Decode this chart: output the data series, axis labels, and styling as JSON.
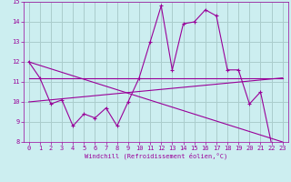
{
  "xlabel": "Windchill (Refroidissement éolien,°C)",
  "bg_color": "#cceef0",
  "grid_color": "#aacccc",
  "line_color": "#990099",
  "xlim": [
    -0.5,
    23.5
  ],
  "ylim": [
    8,
    15
  ],
  "xticks": [
    0,
    1,
    2,
    3,
    4,
    5,
    6,
    7,
    8,
    9,
    10,
    11,
    12,
    13,
    14,
    15,
    16,
    17,
    18,
    19,
    20,
    21,
    22,
    23
  ],
  "yticks": [
    8,
    9,
    10,
    11,
    12,
    13,
    14,
    15
  ],
  "series1_x": [
    0,
    1,
    2,
    3,
    4,
    5,
    6,
    7,
    8,
    9,
    10,
    11,
    12,
    13,
    14,
    15,
    16,
    17,
    18,
    19,
    20,
    21,
    22,
    23
  ],
  "series1_y": [
    12.0,
    11.2,
    9.9,
    10.1,
    8.8,
    9.4,
    9.2,
    9.7,
    8.8,
    10.0,
    11.2,
    13.0,
    14.8,
    11.6,
    13.9,
    14.0,
    14.6,
    14.3,
    11.6,
    11.6,
    9.9,
    10.5,
    7.9,
    7.9
  ],
  "series2_x": [
    0,
    23
  ],
  "series2_y": [
    11.2,
    11.2
  ],
  "series3_x": [
    0,
    23
  ],
  "series3_y": [
    10.0,
    11.2
  ],
  "series4_x": [
    0,
    23
  ],
  "series4_y": [
    12.0,
    8.0
  ]
}
